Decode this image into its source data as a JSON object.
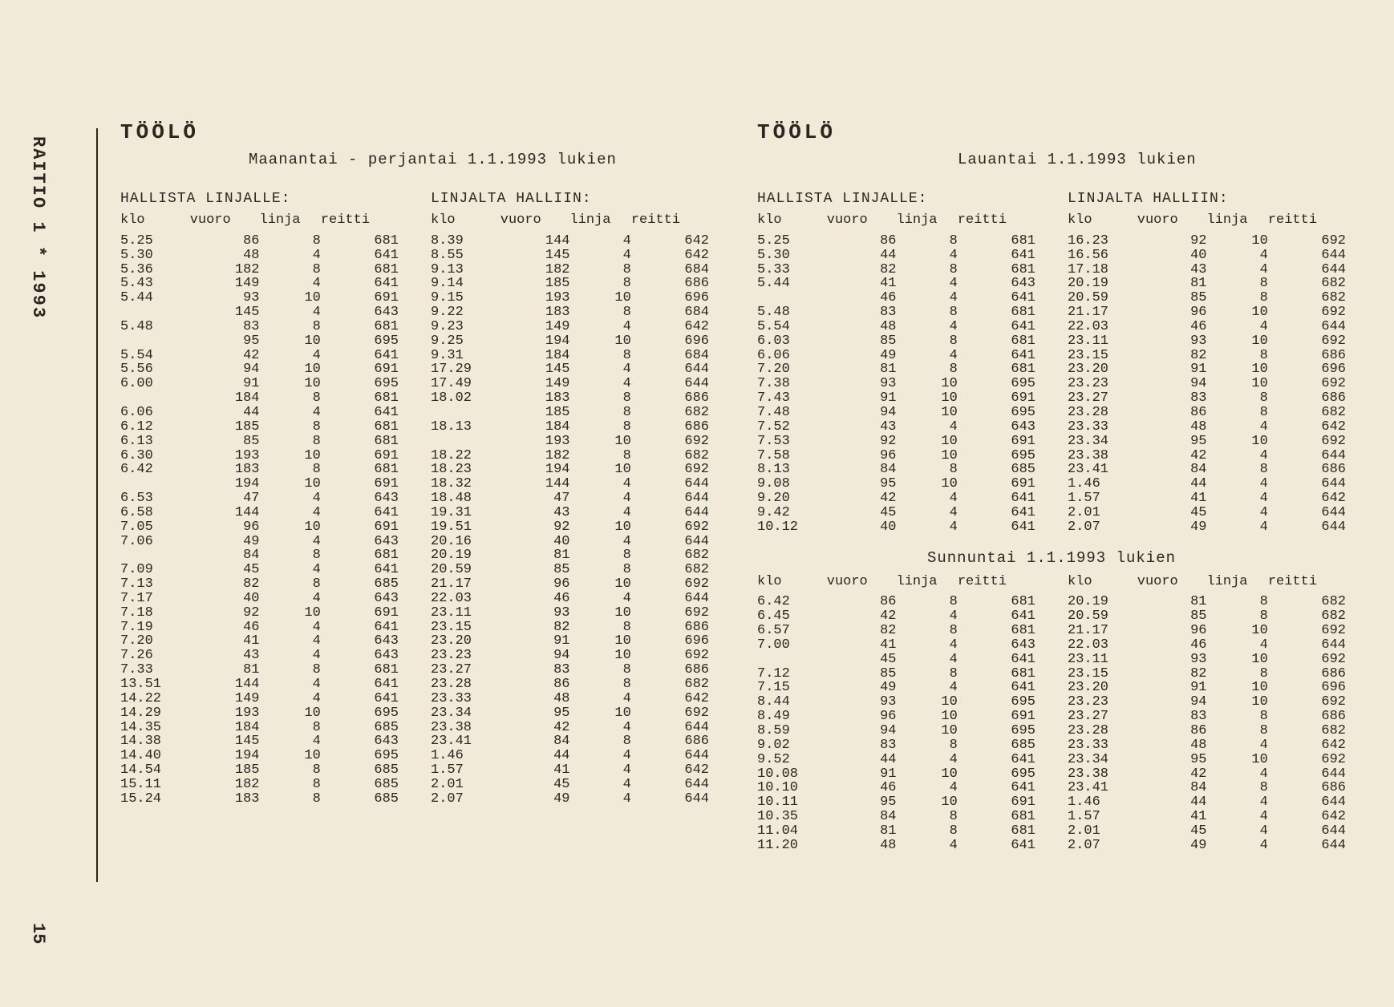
{
  "publication": "RAITIO 1 * 1993",
  "page_number": "15",
  "depot": "TÖÖLÖ",
  "days": {
    "weekday": "Maanantai - perjantai 1.1.1993 lukien",
    "saturday": "Lauantai 1.1.1993 lukien",
    "sunday": "Sunnuntai 1.1.1993 lukien"
  },
  "section_labels": {
    "out": "HALLISTA LINJALLE:",
    "in": "LINJALTA HALLIIN:"
  },
  "columns": {
    "klo": "klo",
    "vuoro": "vuoro",
    "linja": "linja",
    "reitti": "reitti"
  },
  "weekday_out": [
    [
      "5.25",
      "86",
      "8",
      "681"
    ],
    [
      "5.30",
      "48",
      "4",
      "641"
    ],
    [
      "5.36",
      "182",
      "8",
      "681"
    ],
    [
      "5.43",
      "149",
      "4",
      "641"
    ],
    [
      "5.44",
      "93",
      "10",
      "691"
    ],
    [
      "",
      "145",
      "4",
      "643"
    ],
    [
      "5.48",
      "83",
      "8",
      "681"
    ],
    [
      "",
      "95",
      "10",
      "695"
    ],
    [
      "5.54",
      "42",
      "4",
      "641"
    ],
    [
      "5.56",
      "94",
      "10",
      "691"
    ],
    [
      "6.00",
      "91",
      "10",
      "695"
    ],
    [
      "",
      "184",
      "8",
      "681"
    ],
    [
      "6.06",
      "44",
      "4",
      "641"
    ],
    [
      "6.12",
      "185",
      "8",
      "681"
    ],
    [
      "6.13",
      "85",
      "8",
      "681"
    ],
    [
      "6.30",
      "193",
      "10",
      "691"
    ],
    [
      "6.42",
      "183",
      "8",
      "681"
    ],
    [
      "",
      "194",
      "10",
      "691"
    ],
    [
      "6.53",
      "47",
      "4",
      "643"
    ],
    [
      "6.58",
      "144",
      "4",
      "641"
    ],
    [
      "7.05",
      "96",
      "10",
      "691"
    ],
    [
      "7.06",
      "49",
      "4",
      "643"
    ],
    [
      "",
      "84",
      "8",
      "681"
    ],
    [
      "7.09",
      "45",
      "4",
      "641"
    ],
    [
      "7.13",
      "82",
      "8",
      "685"
    ],
    [
      "7.17",
      "40",
      "4",
      "643"
    ],
    [
      "7.18",
      "92",
      "10",
      "691"
    ],
    [
      "7.19",
      "46",
      "4",
      "641"
    ],
    [
      "7.20",
      "41",
      "4",
      "643"
    ],
    [
      "7.26",
      "43",
      "4",
      "643"
    ],
    [
      "7.33",
      "81",
      "8",
      "681"
    ],
    [
      "13.51",
      "144",
      "4",
      "641"
    ],
    [
      "14.22",
      "149",
      "4",
      "641"
    ],
    [
      "14.29",
      "193",
      "10",
      "695"
    ],
    [
      "14.35",
      "184",
      "8",
      "685"
    ],
    [
      "14.38",
      "145",
      "4",
      "643"
    ],
    [
      "14.40",
      "194",
      "10",
      "695"
    ],
    [
      "14.54",
      "185",
      "8",
      "685"
    ],
    [
      "15.11",
      "182",
      "8",
      "685"
    ],
    [
      "15.24",
      "183",
      "8",
      "685"
    ]
  ],
  "weekday_in": [
    [
      "8.39",
      "144",
      "4",
      "642"
    ],
    [
      "8.55",
      "145",
      "4",
      "642"
    ],
    [
      "9.13",
      "182",
      "8",
      "684"
    ],
    [
      "9.14",
      "185",
      "8",
      "686"
    ],
    [
      "9.15",
      "193",
      "10",
      "696"
    ],
    [
      "9.22",
      "183",
      "8",
      "684"
    ],
    [
      "9.23",
      "149",
      "4",
      "642"
    ],
    [
      "9.25",
      "194",
      "10",
      "696"
    ],
    [
      "9.31",
      "184",
      "8",
      "684"
    ],
    [
      "17.29",
      "145",
      "4",
      "644"
    ],
    [
      "17.49",
      "149",
      "4",
      "644"
    ],
    [
      "18.02",
      "183",
      "8",
      "686"
    ],
    [
      "",
      "185",
      "8",
      "682"
    ],
    [
      "18.13",
      "184",
      "8",
      "686"
    ],
    [
      "",
      "193",
      "10",
      "692"
    ],
    [
      "18.22",
      "182",
      "8",
      "682"
    ],
    [
      "18.23",
      "194",
      "10",
      "692"
    ],
    [
      "18.32",
      "144",
      "4",
      "644"
    ],
    [
      "18.48",
      "47",
      "4",
      "644"
    ],
    [
      "19.31",
      "43",
      "4",
      "644"
    ],
    [
      "19.51",
      "92",
      "10",
      "692"
    ],
    [
      "20.16",
      "40",
      "4",
      "644"
    ],
    [
      "20.19",
      "81",
      "8",
      "682"
    ],
    [
      "20.59",
      "85",
      "8",
      "682"
    ],
    [
      "21.17",
      "96",
      "10",
      "692"
    ],
    [
      "22.03",
      "46",
      "4",
      "644"
    ],
    [
      "23.11",
      "93",
      "10",
      "692"
    ],
    [
      "23.15",
      "82",
      "8",
      "686"
    ],
    [
      "23.20",
      "91",
      "10",
      "696"
    ],
    [
      "23.23",
      "94",
      "10",
      "692"
    ],
    [
      "23.27",
      "83",
      "8",
      "686"
    ],
    [
      "23.28",
      "86",
      "8",
      "682"
    ],
    [
      "23.33",
      "48",
      "4",
      "642"
    ],
    [
      "23.34",
      "95",
      "10",
      "692"
    ],
    [
      "23.38",
      "42",
      "4",
      "644"
    ],
    [
      "23.41",
      "84",
      "8",
      "686"
    ],
    [
      "1.46",
      "44",
      "4",
      "644"
    ],
    [
      "1.57",
      "41",
      "4",
      "642"
    ],
    [
      "2.01",
      "45",
      "4",
      "644"
    ],
    [
      "2.07",
      "49",
      "4",
      "644"
    ]
  ],
  "saturday_out": [
    [
      "5.25",
      "86",
      "8",
      "681"
    ],
    [
      "5.30",
      "44",
      "4",
      "641"
    ],
    [
      "5.33",
      "82",
      "8",
      "681"
    ],
    [
      "5.44",
      "41",
      "4",
      "643"
    ],
    [
      "",
      "46",
      "4",
      "641"
    ],
    [
      "5.48",
      "83",
      "8",
      "681"
    ],
    [
      "5.54",
      "48",
      "4",
      "641"
    ],
    [
      "6.03",
      "85",
      "8",
      "681"
    ],
    [
      "6.06",
      "49",
      "4",
      "641"
    ],
    [
      "7.20",
      "81",
      "8",
      "681"
    ],
    [
      "7.38",
      "93",
      "10",
      "695"
    ],
    [
      "7.43",
      "91",
      "10",
      "691"
    ],
    [
      "7.48",
      "94",
      "10",
      "695"
    ],
    [
      "7.52",
      "43",
      "4",
      "643"
    ],
    [
      "7.53",
      "92",
      "10",
      "691"
    ],
    [
      "7.58",
      "96",
      "10",
      "695"
    ],
    [
      "8.13",
      "84",
      "8",
      "685"
    ],
    [
      "9.08",
      "95",
      "10",
      "691"
    ],
    [
      "9.20",
      "42",
      "4",
      "641"
    ],
    [
      "9.42",
      "45",
      "4",
      "641"
    ],
    [
      "10.12",
      "40",
      "4",
      "641"
    ]
  ],
  "saturday_in": [
    [
      "16.23",
      "92",
      "10",
      "692"
    ],
    [
      "16.56",
      "40",
      "4",
      "644"
    ],
    [
      "17.18",
      "43",
      "4",
      "644"
    ],
    [
      "20.19",
      "81",
      "8",
      "682"
    ],
    [
      "20.59",
      "85",
      "8",
      "682"
    ],
    [
      "21.17",
      "96",
      "10",
      "692"
    ],
    [
      "22.03",
      "46",
      "4",
      "644"
    ],
    [
      "23.11",
      "93",
      "10",
      "692"
    ],
    [
      "23.15",
      "82",
      "8",
      "686"
    ],
    [
      "23.20",
      "91",
      "10",
      "696"
    ],
    [
      "23.23",
      "94",
      "10",
      "692"
    ],
    [
      "23.27",
      "83",
      "8",
      "686"
    ],
    [
      "23.28",
      "86",
      "8",
      "682"
    ],
    [
      "23.33",
      "48",
      "4",
      "642"
    ],
    [
      "23.34",
      "95",
      "10",
      "692"
    ],
    [
      "23.38",
      "42",
      "4",
      "644"
    ],
    [
      "23.41",
      "84",
      "8",
      "686"
    ],
    [
      "1.46",
      "44",
      "4",
      "644"
    ],
    [
      "1.57",
      "41",
      "4",
      "642"
    ],
    [
      "2.01",
      "45",
      "4",
      "644"
    ],
    [
      "2.07",
      "49",
      "4",
      "644"
    ]
  ],
  "sunday_out": [
    [
      "6.42",
      "86",
      "8",
      "681"
    ],
    [
      "6.45",
      "42",
      "4",
      "641"
    ],
    [
      "6.57",
      "82",
      "8",
      "681"
    ],
    [
      "7.00",
      "41",
      "4",
      "643"
    ],
    [
      "",
      "45",
      "4",
      "641"
    ],
    [
      "7.12",
      "85",
      "8",
      "681"
    ],
    [
      "7.15",
      "49",
      "4",
      "641"
    ],
    [
      "8.44",
      "93",
      "10",
      "695"
    ],
    [
      "8.49",
      "96",
      "10",
      "691"
    ],
    [
      "8.59",
      "94",
      "10",
      "695"
    ],
    [
      "9.02",
      "83",
      "8",
      "685"
    ],
    [
      "9.52",
      "44",
      "4",
      "641"
    ],
    [
      "10.08",
      "91",
      "10",
      "695"
    ],
    [
      "10.10",
      "46",
      "4",
      "641"
    ],
    [
      "10.11",
      "95",
      "10",
      "691"
    ],
    [
      "10.35",
      "84",
      "8",
      "681"
    ],
    [
      "11.04",
      "81",
      "8",
      "681"
    ],
    [
      "11.20",
      "48",
      "4",
      "641"
    ]
  ],
  "sunday_in": [
    [
      "20.19",
      "81",
      "8",
      "682"
    ],
    [
      "20.59",
      "85",
      "8",
      "682"
    ],
    [
      "21.17",
      "96",
      "10",
      "692"
    ],
    [
      "22.03",
      "46",
      "4",
      "644"
    ],
    [
      "23.11",
      "93",
      "10",
      "692"
    ],
    [
      "23.15",
      "82",
      "8",
      "686"
    ],
    [
      "23.20",
      "91",
      "10",
      "696"
    ],
    [
      "23.23",
      "94",
      "10",
      "692"
    ],
    [
      "23.27",
      "83",
      "8",
      "686"
    ],
    [
      "23.28",
      "86",
      "8",
      "682"
    ],
    [
      "23.33",
      "48",
      "4",
      "642"
    ],
    [
      "23.34",
      "95",
      "10",
      "692"
    ],
    [
      "23.38",
      "42",
      "4",
      "644"
    ],
    [
      "23.41",
      "84",
      "8",
      "686"
    ],
    [
      "1.46",
      "44",
      "4",
      "644"
    ],
    [
      "1.57",
      "41",
      "4",
      "642"
    ],
    [
      "2.01",
      "45",
      "4",
      "644"
    ],
    [
      "2.07",
      "49",
      "4",
      "644"
    ]
  ],
  "style": {
    "background_color": "#f1ead9",
    "text_color": "#2a2720",
    "font_family": "Courier New, monospace",
    "title_fontsize": 26,
    "body_fontsize": 17,
    "header_fontsize": 18
  }
}
